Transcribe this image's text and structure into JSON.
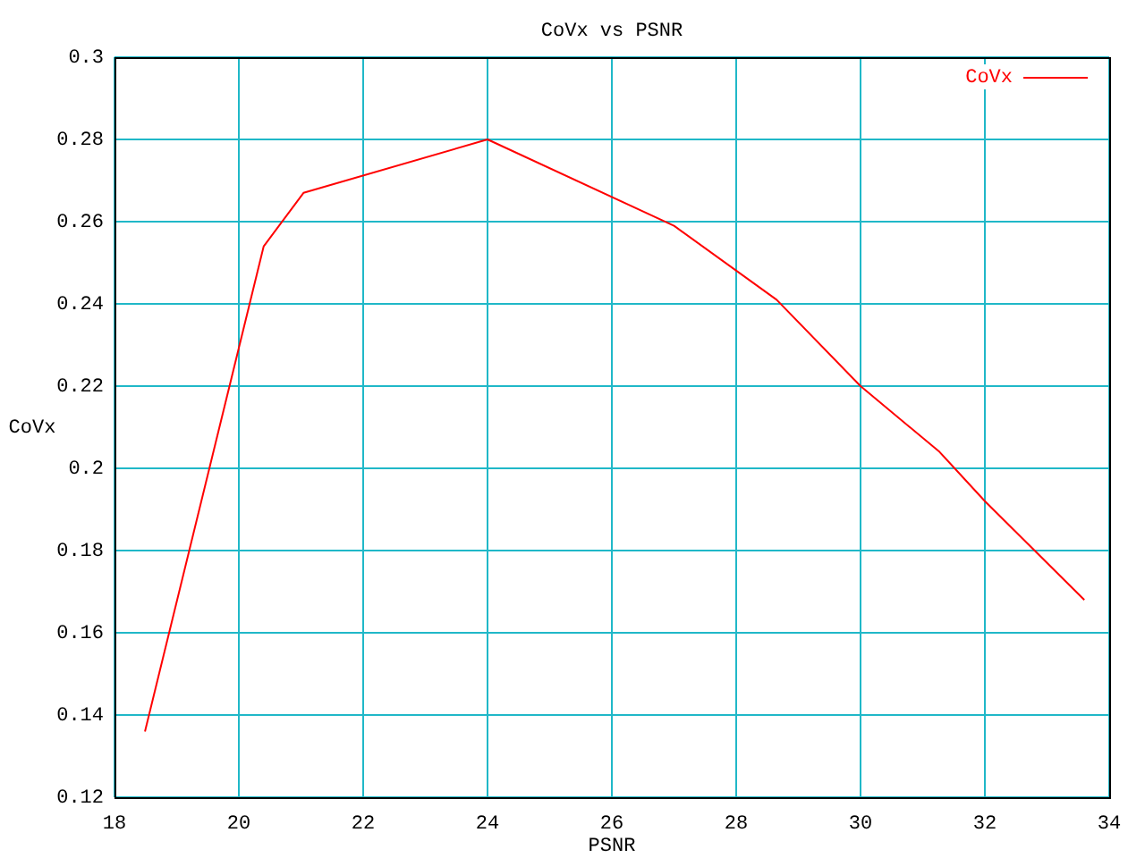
{
  "chart_data": {
    "type": "line",
    "title": "CoVx vs PSNR",
    "xlabel": "PSNR",
    "ylabel": "CoVx",
    "series": [
      {
        "name": "CoVx",
        "color": "#ff0000",
        "x": [
          18.49,
          20.4,
          21.04,
          24.0,
          27.0,
          28.65,
          30.0,
          31.27,
          32.0,
          33.6
        ],
        "values": [
          0.136,
          0.254,
          0.267,
          0.28,
          0.259,
          0.241,
          0.22,
          0.204,
          0.192,
          0.168
        ]
      }
    ],
    "xlim": [
      18,
      34
    ],
    "xticks": [
      18,
      20,
      22,
      24,
      26,
      28,
      30,
      32,
      34
    ],
    "ylim": [
      0.12,
      0.3
    ],
    "yticks": [
      0.12,
      0.14,
      0.16,
      0.18,
      0.2,
      0.22,
      0.24,
      0.26,
      0.28,
      0.3
    ],
    "grid": true,
    "legend": "top right",
    "marker": "none",
    "line_style": "solid"
  }
}
